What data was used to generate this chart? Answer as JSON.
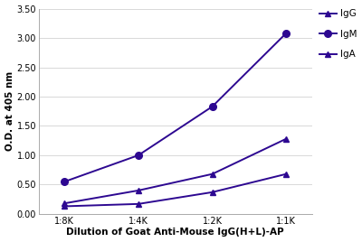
{
  "x_labels": [
    "1:8K",
    "1:4K",
    "1:2K",
    "1:1K"
  ],
  "x_values": [
    1,
    2,
    3,
    4
  ],
  "IgG": [
    0.18,
    0.4,
    0.68,
    1.28
  ],
  "IgM": [
    0.55,
    1.0,
    1.83,
    3.08
  ],
  "IgA": [
    0.13,
    0.17,
    0.37,
    0.68
  ],
  "color": "#2d0891",
  "marker_IgG": "^",
  "marker_IgM": "o",
  "marker_IgA": "^",
  "ylabel": "O.D. at 405 nm",
  "xlabel": "Dilution of Goat Anti-Mouse IgG(H+L)-AP",
  "ylim": [
    0.0,
    3.5
  ],
  "yticks": [
    0.0,
    0.5,
    1.0,
    1.5,
    2.0,
    2.5,
    3.0,
    3.5
  ],
  "legend_labels": [
    "IgG",
    "IgM",
    "IgA"
  ],
  "axis_fontsize": 7.5,
  "tick_fontsize": 7,
  "legend_fontsize": 7.5,
  "line_width": 1.4,
  "marker_size_IgG": 4.5,
  "marker_size_IgM": 5.5,
  "marker_size_IgA": 4.5,
  "background_color": "#ffffff",
  "grid_color": "#d8d8d8"
}
